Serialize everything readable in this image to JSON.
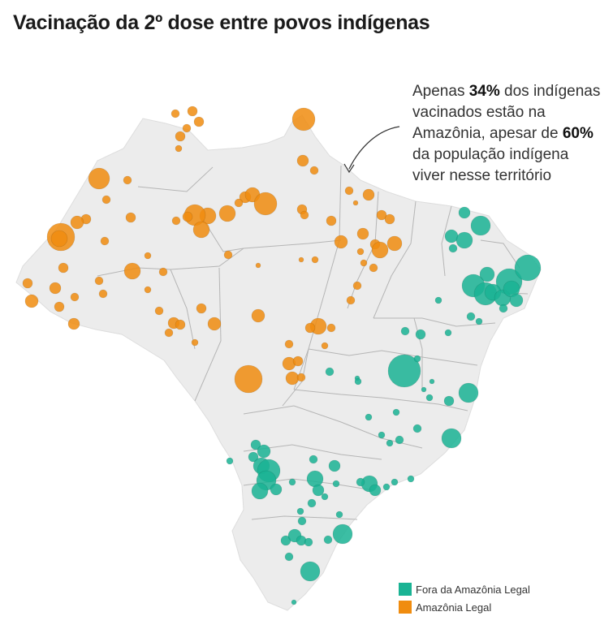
{
  "title": "Vacinação da 2º dose entre povos indígenas",
  "colors": {
    "outside": "#1ab394",
    "amazon": "#f08c0f",
    "land": "#ececec",
    "borders": "#b5b5b5"
  },
  "annotation": {
    "part1": "Apenas ",
    "pct1": "34%",
    "part2": " dos indígenas vacinados estão na Amazônia, apesar de ",
    "pct2": "60%",
    "part3": " da população indígena viver nesse território"
  },
  "legend": [
    {
      "label": "Fora da Amazônia Legal",
      "color": "#1ab394"
    },
    {
      "label": "Amazônia Legal",
      "color": "#f08c0f"
    }
  ]
}
